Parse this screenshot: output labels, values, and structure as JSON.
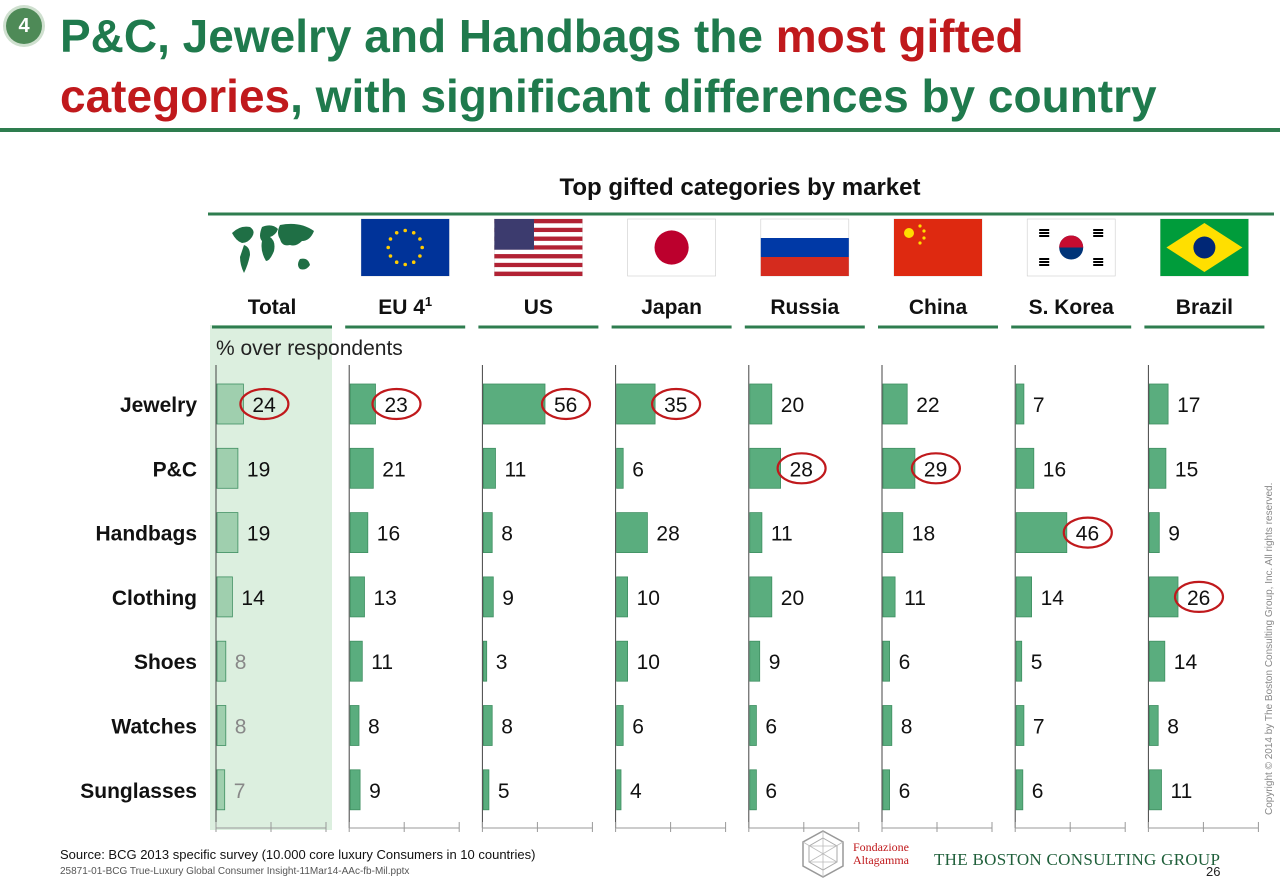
{
  "slide": {
    "badge": "4",
    "title_part1": "P&C, Jewelry and Handbags the ",
    "title_highlight1": "most gifted",
    "title_highlight2": "categories",
    "title_part2": ", with significant differences by country",
    "source": "Source: BCG 2013 specific survey (10.000 core luxury Consumers in 10 countries)",
    "file_ref": "25871-01-BCG True-Luxury Global Consumer Insight-11Mar14-AAc-fb-Mil.pptx",
    "page_number": "26",
    "copyright": "Copyright © 2014 by The Boston Consulting Group, Inc. All rights reserved.",
    "logo_altagamma_line1": "Fondazione",
    "logo_altagamma_line2": "Altagamma",
    "logo_bcg": "THE BOSTON CONSULTING GROUP"
  },
  "chart_data": {
    "type": "bar",
    "title": "Top gifted categories by market",
    "note": "% over respondents",
    "categories": [
      "Jewelry",
      "P&C",
      "Handbags",
      "Clothing",
      "Shoes",
      "Watches",
      "Sunglasses"
    ],
    "series": [
      {
        "name": "Total",
        "footnote": "",
        "flag": "world",
        "values": [
          24,
          19,
          19,
          14,
          8,
          8,
          7
        ],
        "highlight": [
          0
        ]
      },
      {
        "name": "EU 4",
        "footnote": "1",
        "flag": "eu",
        "values": [
          23,
          21,
          16,
          13,
          11,
          8,
          9
        ],
        "highlight": [
          0
        ]
      },
      {
        "name": "US",
        "footnote": "",
        "flag": "us",
        "values": [
          56,
          11,
          8,
          9,
          3,
          8,
          5
        ],
        "highlight": [
          0
        ]
      },
      {
        "name": "Japan",
        "footnote": "",
        "flag": "japan",
        "values": [
          35,
          6,
          28,
          10,
          10,
          6,
          4
        ],
        "highlight": [
          0
        ]
      },
      {
        "name": "Russia",
        "footnote": "",
        "flag": "russia",
        "values": [
          20,
          28,
          11,
          20,
          9,
          6,
          6
        ],
        "highlight": [
          1
        ]
      },
      {
        "name": "China",
        "footnote": "",
        "flag": "china",
        "values": [
          22,
          29,
          18,
          11,
          6,
          8,
          6
        ],
        "highlight": [
          1
        ]
      },
      {
        "name": "S. Korea",
        "footnote": "",
        "flag": "korea",
        "values": [
          7,
          16,
          46,
          14,
          5,
          7,
          6
        ],
        "highlight": [
          2
        ]
      },
      {
        "name": "Brazil",
        "footnote": "",
        "flag": "brazil",
        "values": [
          17,
          15,
          9,
          26,
          14,
          8,
          11
        ],
        "highlight": [
          3
        ]
      }
    ],
    "xlim": [
      0,
      60
    ],
    "colors": {
      "bar": "#5aad7e",
      "bar_total": "#9fcfae",
      "total_panel": "#dcefdf",
      "highlight_ellipse": "#c0191c",
      "rule": "#2e7d4f",
      "faded_text": "#888888"
    }
  }
}
